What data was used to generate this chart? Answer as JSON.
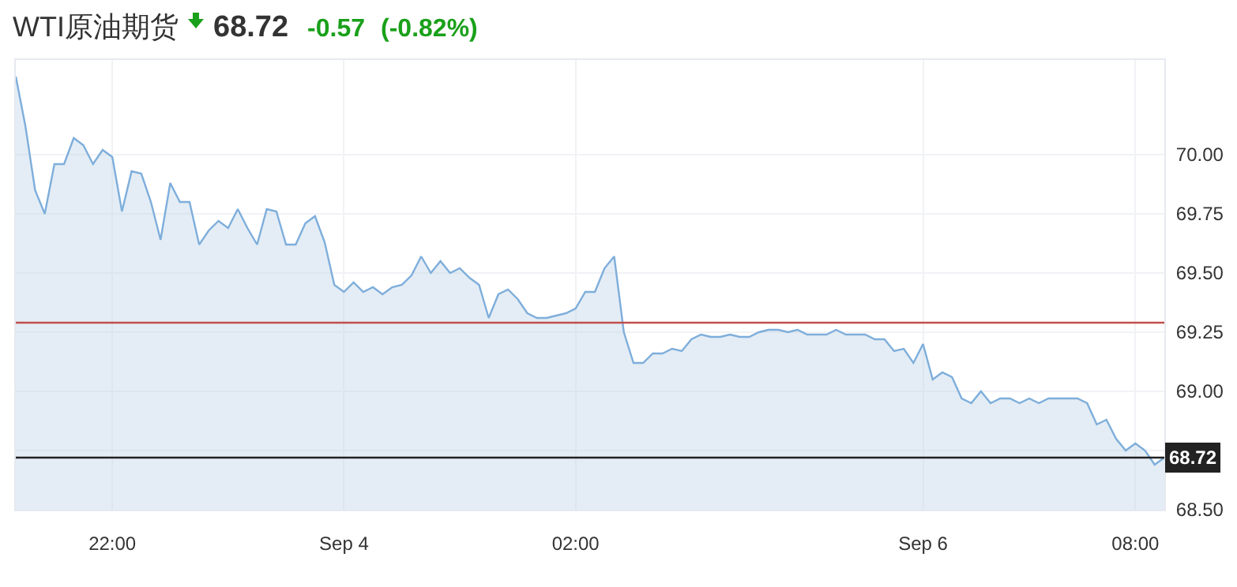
{
  "chart_data": {
    "type": "area",
    "title": "WTI原油期货",
    "annotations": [
      "68.72",
      "-0.57",
      "(-0.82%)"
    ],
    "categories": [
      null,
      null,
      null,
      null,
      null,
      null,
      null,
      null,
      null,
      null,
      "22:00",
      null,
      null,
      null,
      null,
      null,
      null,
      null,
      null,
      null,
      null,
      null,
      null,
      null,
      null,
      null,
      null,
      null,
      null,
      null,
      null,
      null,
      null,
      null,
      "Sep 4",
      null,
      null,
      null,
      null,
      null,
      null,
      null,
      null,
      null,
      null,
      null,
      null,
      null,
      null,
      null,
      null,
      null,
      null,
      null,
      null,
      null,
      null,
      null,
      "02:00",
      null,
      null,
      null,
      null,
      null,
      null,
      null,
      null,
      null,
      null,
      null,
      null,
      null,
      null,
      null,
      null,
      null,
      null,
      null,
      null,
      null,
      null,
      null,
      null,
      null,
      null,
      null,
      null,
      null,
      null,
      null,
      null,
      null,
      null,
      null,
      "Sep 6",
      null,
      null,
      null,
      null,
      null,
      null,
      null,
      null,
      null,
      null,
      null,
      null,
      null,
      null,
      null,
      null,
      null,
      null,
      null,
      null,
      null,
      "08:00",
      null,
      null,
      null
    ],
    "series": [
      {
        "color": "#7eaedb",
        "values": [
          70.33,
          70.12,
          69.85,
          69.75,
          69.96,
          69.96,
          70.07,
          70.04,
          69.96,
          70.02,
          69.99,
          69.76,
          69.93,
          69.92,
          69.8,
          69.64,
          69.88,
          69.8,
          69.8,
          69.62,
          69.68,
          69.72,
          69.69,
          69.77,
          69.69,
          69.62,
          69.77,
          69.76,
          69.62,
          69.62,
          69.71,
          69.74,
          69.63,
          69.45,
          69.42,
          69.46,
          69.42,
          69.44,
          69.41,
          69.44,
          69.45,
          69.49,
          69.57,
          69.5,
          69.55,
          69.5,
          69.52,
          69.48,
          69.45,
          69.31,
          69.41,
          69.43,
          69.39,
          69.33,
          69.31,
          69.31,
          69.32,
          69.33,
          69.35,
          69.42,
          69.42,
          69.52,
          69.57,
          69.25,
          69.12,
          69.12,
          69.16,
          69.16,
          69.18,
          69.17,
          69.22,
          69.24,
          69.23,
          69.23,
          69.24,
          69.23,
          69.23,
          69.25,
          69.26,
          69.26,
          69.25,
          69.26,
          69.24,
          69.24,
          69.24,
          69.26,
          69.24,
          69.24,
          69.24,
          69.22,
          69.22,
          69.17,
          69.18,
          69.12,
          69.2,
          69.05,
          69.08,
          69.06,
          68.97,
          68.95,
          69.0,
          68.95,
          68.97,
          68.97,
          68.95,
          68.97,
          68.95,
          68.97,
          68.97,
          68.97,
          68.97,
          68.95,
          68.86,
          68.88,
          68.8,
          68.75,
          68.78,
          68.75,
          68.69,
          68.72
        ]
      }
    ],
    "ylim": [
      68.5,
      70.4
    ],
    "yticks": [
      {
        "value": 68.5,
        "label": "68.50"
      },
      {
        "value": 68.75,
        "label": null
      },
      {
        "value": 69,
        "label": "69.00"
      },
      {
        "value": 69.25,
        "label": "69.25"
      },
      {
        "value": 69.5,
        "label": "69.50"
      },
      {
        "value": 69.75,
        "label": "69.75"
      },
      {
        "value": 70,
        "label": "70.00"
      }
    ],
    "ref_lines": [
      {
        "axis": "y",
        "value": 69.29,
        "color": "#c0504d"
      },
      {
        "axis": "y",
        "value": 68.72,
        "label": "68.72",
        "color": "#222222"
      }
    ],
    "grid": true,
    "marker": "none",
    "line_style": "solid"
  }
}
